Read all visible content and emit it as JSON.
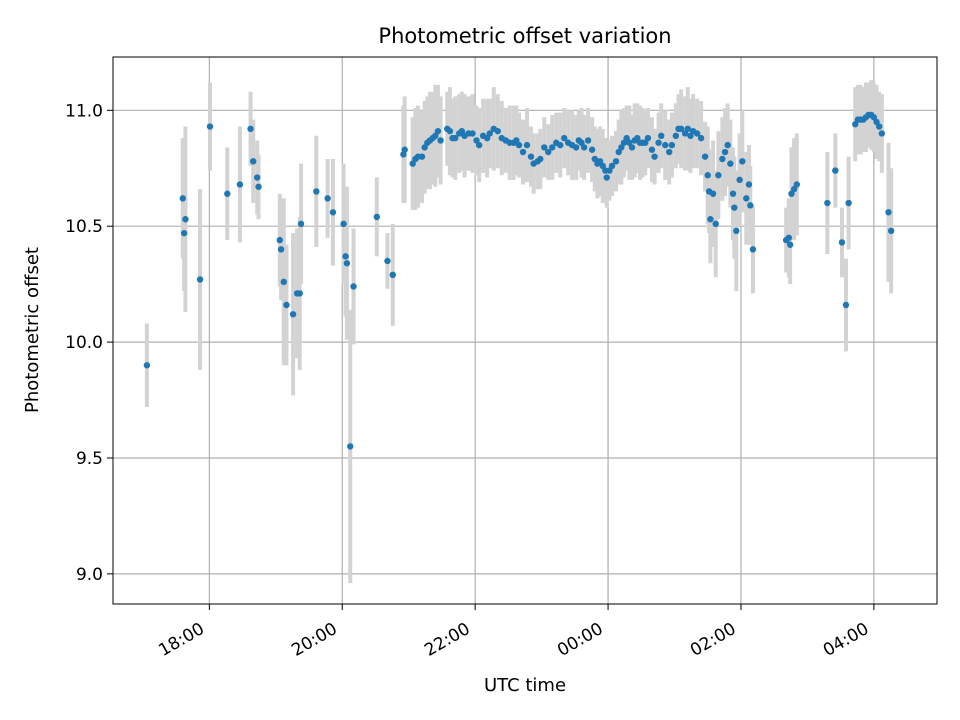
{
  "chart_data": {
    "type": "scatter",
    "title": "Photometric offset variation",
    "xlabel": "UTC time",
    "ylabel": "Photometric offset",
    "x_unit": "hours since 00:00 UTC of the first night",
    "xlim": [
      16.55,
      28.95
    ],
    "ylim": [
      8.87,
      11.23
    ],
    "xticks": [
      {
        "value": 18,
        "label": "18:00"
      },
      {
        "value": 20,
        "label": "20:00"
      },
      {
        "value": 22,
        "label": "22:00"
      },
      {
        "value": 24,
        "label": "00:00"
      },
      {
        "value": 26,
        "label": "02:00"
      },
      {
        "value": 28,
        "label": "04:00"
      }
    ],
    "yticks": [
      {
        "value": 9.0,
        "label": "9.0"
      },
      {
        "value": 9.5,
        "label": "9.5"
      },
      {
        "value": 10.0,
        "label": "10.0"
      },
      {
        "value": 10.5,
        "label": "10.5"
      },
      {
        "value": 11.0,
        "label": "11.0"
      }
    ],
    "grid": true,
    "colors": {
      "point": "#1f77b4",
      "errorbar": "#d3d3d3",
      "grid": "#b0b0b0",
      "axes": "#000000"
    },
    "series": [
      {
        "name": "offset",
        "points": [
          [
            17.06,
            9.9,
            0.18
          ],
          [
            17.6,
            10.62,
            0.26
          ],
          [
            17.62,
            10.47,
            0.25
          ],
          [
            17.64,
            10.53,
            0.4
          ],
          [
            17.86,
            10.27,
            0.39
          ],
          [
            18.01,
            10.93,
            0.19
          ],
          [
            18.27,
            10.64,
            0.2
          ],
          [
            18.46,
            10.68,
            0.25
          ],
          [
            18.62,
            10.92,
            0.16
          ],
          [
            18.66,
            10.78,
            0.18
          ],
          [
            18.72,
            10.71,
            0.16
          ],
          [
            18.74,
            10.67,
            0.14
          ],
          [
            19.06,
            10.44,
            0.2
          ],
          [
            19.08,
            10.4,
            0.22
          ],
          [
            19.12,
            10.26,
            0.36
          ],
          [
            19.16,
            10.16,
            0.26
          ],
          [
            19.26,
            10.12,
            0.35
          ],
          [
            19.32,
            10.21,
            0.28
          ],
          [
            19.36,
            10.21,
            0.33
          ],
          [
            19.38,
            10.51,
            0.26
          ],
          [
            19.61,
            10.65,
            0.24
          ],
          [
            19.78,
            10.62,
            0.17
          ],
          [
            19.86,
            10.56,
            0.23
          ],
          [
            20.02,
            10.51,
            0.26
          ],
          [
            20.05,
            10.37,
            0.26
          ],
          [
            20.07,
            10.34,
            0.33
          ],
          [
            20.12,
            9.55,
            0.59
          ],
          [
            20.17,
            10.24,
            0.25
          ],
          [
            20.52,
            10.54,
            0.17
          ],
          [
            20.68,
            10.35,
            0.12
          ],
          [
            20.76,
            10.29,
            0.22
          ],
          [
            20.92,
            10.81,
            0.21
          ],
          [
            20.94,
            10.83,
            0.23
          ],
          [
            21.06,
            10.77,
            0.2
          ],
          [
            21.1,
            10.79,
            0.22
          ],
          [
            21.14,
            10.8,
            0.22
          ],
          [
            21.2,
            10.8,
            0.2
          ],
          [
            21.24,
            10.84,
            0.2
          ],
          [
            21.28,
            10.86,
            0.2
          ],
          [
            21.32,
            10.87,
            0.21
          ],
          [
            21.36,
            10.88,
            0.2
          ],
          [
            21.4,
            10.89,
            0.22
          ],
          [
            21.44,
            10.91,
            0.2
          ],
          [
            21.48,
            10.87,
            0.19
          ],
          [
            21.58,
            10.92,
            0.16
          ],
          [
            21.62,
            10.91,
            0.19
          ],
          [
            21.66,
            10.88,
            0.17
          ],
          [
            21.7,
            10.88,
            0.18
          ],
          [
            21.76,
            10.9,
            0.17
          ],
          [
            21.8,
            10.91,
            0.17
          ],
          [
            21.84,
            10.89,
            0.18
          ],
          [
            21.9,
            10.9,
            0.16
          ],
          [
            21.96,
            10.9,
            0.17
          ],
          [
            22.02,
            10.87,
            0.15
          ],
          [
            22.06,
            10.85,
            0.16
          ],
          [
            22.12,
            10.89,
            0.16
          ],
          [
            22.18,
            10.88,
            0.17
          ],
          [
            22.22,
            10.9,
            0.15
          ],
          [
            22.28,
            10.92,
            0.18
          ],
          [
            22.34,
            10.91,
            0.16
          ],
          [
            22.4,
            10.88,
            0.16
          ],
          [
            22.46,
            10.87,
            0.14
          ],
          [
            22.52,
            10.86,
            0.16
          ],
          [
            22.58,
            10.86,
            0.16
          ],
          [
            22.62,
            10.87,
            0.15
          ],
          [
            22.66,
            10.85,
            0.14
          ],
          [
            22.72,
            10.82,
            0.14
          ],
          [
            22.78,
            10.85,
            0.16
          ],
          [
            22.84,
            10.8,
            0.13
          ],
          [
            22.88,
            10.77,
            0.13
          ],
          [
            22.94,
            10.78,
            0.12
          ],
          [
            22.98,
            10.79,
            0.13
          ],
          [
            23.04,
            10.84,
            0.13
          ],
          [
            23.1,
            10.82,
            0.12
          ],
          [
            23.16,
            10.84,
            0.14
          ],
          [
            23.22,
            10.86,
            0.13
          ],
          [
            23.28,
            10.85,
            0.14
          ],
          [
            23.34,
            10.88,
            0.13
          ],
          [
            23.4,
            10.86,
            0.14
          ],
          [
            23.46,
            10.85,
            0.15
          ],
          [
            23.52,
            10.84,
            0.14
          ],
          [
            23.56,
            10.87,
            0.13
          ],
          [
            23.6,
            10.86,
            0.15
          ],
          [
            23.64,
            10.84,
            0.14
          ],
          [
            23.7,
            10.87,
            0.14
          ],
          [
            23.76,
            10.83,
            0.14
          ],
          [
            23.8,
            10.79,
            0.14
          ],
          [
            23.84,
            10.77,
            0.15
          ],
          [
            23.88,
            10.78,
            0.15
          ],
          [
            23.92,
            10.76,
            0.16
          ],
          [
            23.96,
            10.74,
            0.14
          ],
          [
            23.98,
            10.71,
            0.13
          ],
          [
            24.02,
            10.74,
            0.13
          ],
          [
            24.06,
            10.76,
            0.13
          ],
          [
            24.12,
            10.78,
            0.13
          ],
          [
            24.16,
            10.82,
            0.14
          ],
          [
            24.2,
            10.84,
            0.16
          ],
          [
            24.24,
            10.86,
            0.15
          ],
          [
            24.28,
            10.88,
            0.14
          ],
          [
            24.32,
            10.86,
            0.16
          ],
          [
            24.36,
            10.84,
            0.14
          ],
          [
            24.4,
            10.87,
            0.16
          ],
          [
            24.44,
            10.88,
            0.15
          ],
          [
            24.48,
            10.86,
            0.16
          ],
          [
            24.52,
            10.86,
            0.15
          ],
          [
            24.56,
            10.86,
            0.14
          ],
          [
            24.6,
            10.88,
            0.13
          ],
          [
            24.66,
            10.83,
            0.14
          ],
          [
            24.7,
            10.8,
            0.12
          ],
          [
            24.76,
            10.86,
            0.13
          ],
          [
            24.8,
            10.89,
            0.14
          ],
          [
            24.86,
            10.85,
            0.15
          ],
          [
            24.92,
            10.82,
            0.14
          ],
          [
            24.96,
            10.85,
            0.14
          ],
          [
            25.02,
            10.89,
            0.14
          ],
          [
            25.06,
            10.92,
            0.15
          ],
          [
            25.1,
            10.92,
            0.17
          ],
          [
            25.16,
            10.9,
            0.16
          ],
          [
            25.2,
            10.92,
            0.18
          ],
          [
            25.24,
            10.89,
            0.16
          ],
          [
            25.28,
            10.91,
            0.16
          ],
          [
            25.34,
            10.9,
            0.15
          ],
          [
            25.4,
            10.88,
            0.16
          ],
          [
            25.46,
            10.8,
            0.15
          ],
          [
            25.5,
            10.72,
            0.21
          ],
          [
            25.52,
            10.65,
            0.18
          ],
          [
            25.54,
            10.53,
            0.19
          ],
          [
            25.58,
            10.64,
            0.23
          ],
          [
            25.62,
            10.51,
            0.23
          ],
          [
            25.66,
            10.72,
            0.19
          ],
          [
            25.72,
            10.79,
            0.18
          ],
          [
            25.76,
            10.82,
            0.19
          ],
          [
            25.8,
            10.85,
            0.18
          ],
          [
            25.84,
            10.77,
            0.19
          ],
          [
            25.88,
            10.64,
            0.2
          ],
          [
            25.9,
            10.58,
            0.22
          ],
          [
            25.93,
            10.48,
            0.26
          ],
          [
            25.98,
            10.7,
            0.2
          ],
          [
            26.02,
            10.78,
            0.22
          ],
          [
            26.08,
            10.62,
            0.2
          ],
          [
            26.12,
            10.68,
            0.17
          ],
          [
            26.14,
            10.59,
            0.17
          ],
          [
            26.18,
            10.4,
            0.19
          ],
          [
            26.68,
            10.44,
            0.14
          ],
          [
            26.72,
            10.45,
            0.17
          ],
          [
            26.74,
            10.42,
            0.17
          ],
          [
            26.76,
            10.64,
            0.2
          ],
          [
            26.8,
            10.66,
            0.22
          ],
          [
            26.84,
            10.68,
            0.22
          ],
          [
            27.3,
            10.6,
            0.22
          ],
          [
            27.42,
            10.74,
            0.16
          ],
          [
            27.52,
            10.43,
            0.15
          ],
          [
            27.58,
            10.16,
            0.2
          ],
          [
            27.62,
            10.6,
            0.2
          ],
          [
            27.72,
            10.94,
            0.16
          ],
          [
            27.76,
            10.96,
            0.15
          ],
          [
            27.8,
            10.96,
            0.15
          ],
          [
            27.84,
            10.96,
            0.14
          ],
          [
            27.88,
            10.97,
            0.15
          ],
          [
            27.92,
            10.98,
            0.14
          ],
          [
            27.96,
            10.98,
            0.15
          ],
          [
            28.0,
            10.97,
            0.15
          ],
          [
            28.04,
            10.95,
            0.16
          ],
          [
            28.08,
            10.93,
            0.15
          ],
          [
            28.12,
            10.9,
            0.17
          ],
          [
            28.22,
            10.56,
            0.3
          ],
          [
            28.26,
            10.48,
            0.27
          ]
        ]
      }
    ]
  }
}
